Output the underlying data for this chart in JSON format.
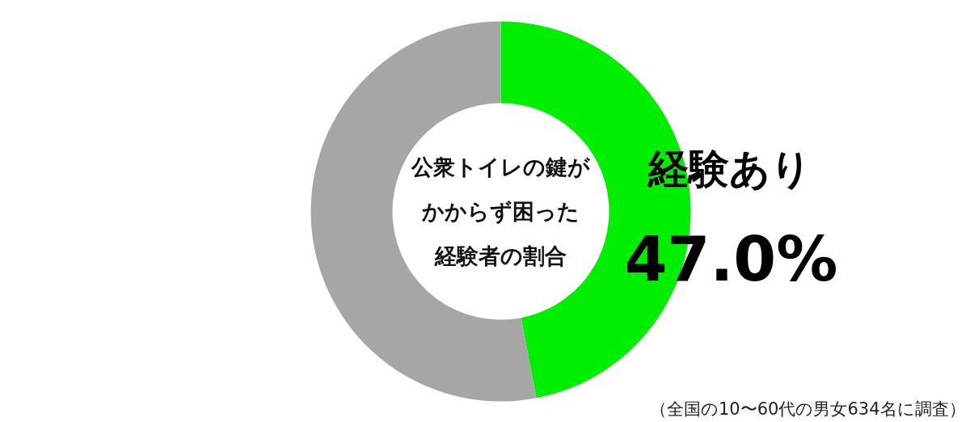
{
  "chart_data": {
    "type": "donut",
    "title": "公衆トイレの鍵がかからず困った経験者の割合",
    "categories": [
      "経験あり",
      null
    ],
    "values": [
      47.0,
      53.0
    ],
    "colors": [
      "#00ee00",
      "#a6a6a6"
    ],
    "value_labels": [
      "47.0%",
      null
    ],
    "annotations": [
      "（全国の10〜60代の男女634名に調査）"
    ]
  }
}
